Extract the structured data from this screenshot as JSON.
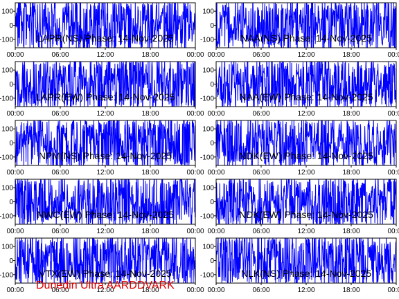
{
  "footer": "Dunedin Ultra AARDDVARK",
  "colors": {
    "trace": "#0000ff",
    "axes": "#000000",
    "footer": "#dd0000"
  },
  "chart_data": [
    {
      "type": "line",
      "title": "LAPR(NS) Phase: 14-Nov-2025",
      "x_ticks": [
        "00:00",
        "06:00",
        "12:00",
        "18:00",
        "00:00"
      ],
      "y_ticks": [
        "100",
        "0",
        "-100"
      ],
      "ylim": [
        -160,
        160
      ],
      "x_range_hours": [
        0,
        24
      ],
      "grid": false
    },
    {
      "type": "line",
      "title": "NAA(NS) Phase: 14-Nov-2025",
      "x_ticks": [
        "00:00",
        "06:00",
        "12:00",
        "18:00",
        "00:00"
      ],
      "y_ticks": [
        "100",
        "0",
        "-100"
      ],
      "ylim": [
        -160,
        160
      ],
      "x_range_hours": [
        0,
        24
      ],
      "grid": false
    },
    {
      "type": "line",
      "title": "LAPR(EW) Phase: 14-Nov-2025",
      "x_ticks": [
        "00:00",
        "06:00",
        "12:00",
        "18:00",
        "00:00"
      ],
      "y_ticks": [
        "100",
        "0",
        "-100"
      ],
      "ylim": [
        -160,
        160
      ],
      "x_range_hours": [
        0,
        24
      ],
      "grid": false
    },
    {
      "type": "line",
      "title": "NAA(EW) Phase: 14-Nov-2025",
      "x_ticks": [
        "00:00",
        "06:00",
        "12:00",
        "18:00",
        "00:00"
      ],
      "y_ticks": [
        "100",
        "0",
        "-100"
      ],
      "ylim": [
        -160,
        160
      ],
      "x_range_hours": [
        0,
        24
      ],
      "grid": false
    },
    {
      "type": "line",
      "title": "NPM(NS) Phase: 14-Nov-2025",
      "x_ticks": [
        "00:00",
        "06:00",
        "12:00",
        "18:00",
        "00:00"
      ],
      "y_ticks": [
        "100",
        "0",
        "-100"
      ],
      "ylim": [
        -160,
        160
      ],
      "x_range_hours": [
        0,
        24
      ],
      "grid": false
    },
    {
      "type": "line",
      "title": "NDK(EW) Phase: 14-Nov-2025",
      "x_ticks": [
        "00:00",
        "06:00",
        "12:00",
        "18:00",
        "00:00"
      ],
      "y_ticks": [
        "100",
        "0",
        "-100"
      ],
      "ylim": [
        -160,
        160
      ],
      "x_range_hours": [
        0,
        24
      ],
      "grid": false
    },
    {
      "type": "line",
      "title": "NWC(EW) Phase: 14-Nov-2025",
      "x_ticks": [
        "00:00",
        "06:00",
        "12:00",
        "18:00",
        "00:00"
      ],
      "y_ticks": [
        "100",
        "0",
        "-100"
      ],
      "ylim": [
        -160,
        160
      ],
      "x_range_hours": [
        0,
        24
      ],
      "grid": false
    },
    {
      "type": "line",
      "title": "NDK(EW) Phase: 14-Nov-2025",
      "x_ticks": [
        "00:00",
        "06:00",
        "12:00",
        "18:00",
        "00:00"
      ],
      "y_ticks": [
        "100",
        "0",
        "-100"
      ],
      "ylim": [
        -160,
        160
      ],
      "x_range_hours": [
        0,
        24
      ],
      "grid": false
    },
    {
      "type": "line",
      "title": "VTX(EW) Phase: 14-Nov-2025",
      "x_ticks": [
        "00:00",
        "06:00",
        "12:00",
        "18:00",
        "00:00"
      ],
      "y_ticks": [
        "100",
        "0",
        "-100"
      ],
      "ylim": [
        -160,
        160
      ],
      "x_range_hours": [
        0,
        24
      ],
      "grid": false
    },
    {
      "type": "line",
      "title": "NLK(NS) Phase: 14-Nov-2025",
      "x_ticks": [
        "00:00",
        "06:00",
        "12:00",
        "18:00",
        "00:00"
      ],
      "y_ticks": [
        "100",
        "0",
        "-100"
      ],
      "ylim": [
        -160,
        160
      ],
      "x_range_hours": [
        0,
        24
      ],
      "grid": false
    }
  ]
}
